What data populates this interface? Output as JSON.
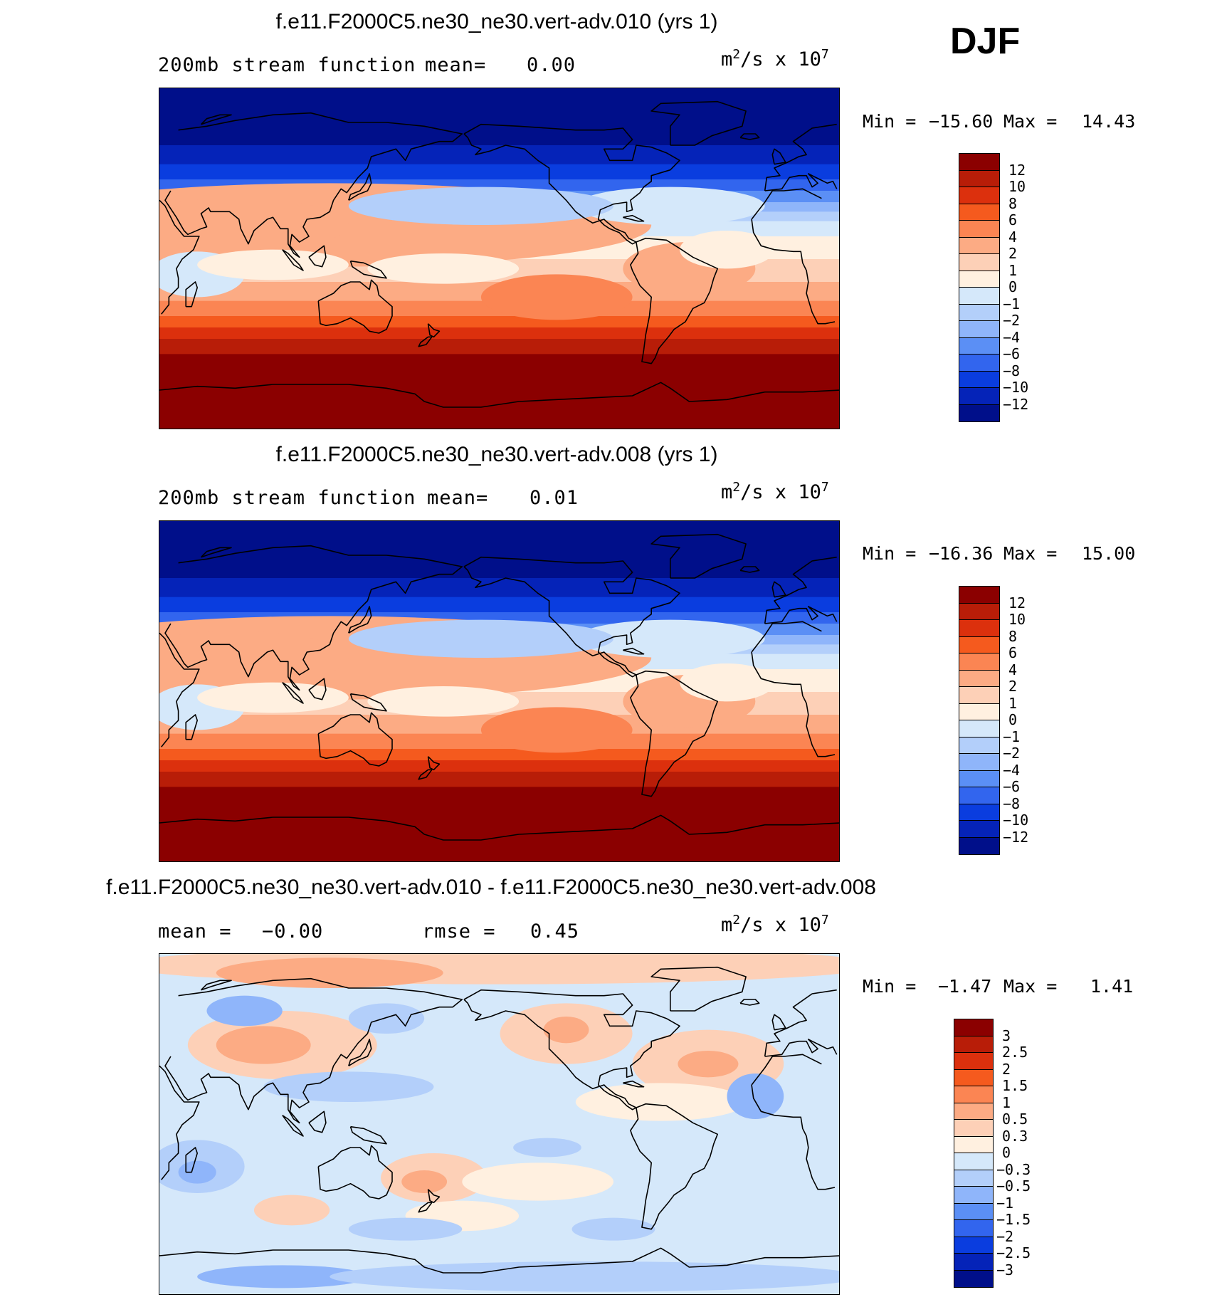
{
  "season": "DJF",
  "panels": [
    {
      "title": "f.e11.F2000C5.ne30_ne30.vert-adv.010 (yrs 1)",
      "subtitle_left": "200mb stream function",
      "stat_label": "mean=",
      "stat_value": "0.00",
      "units": "m²/s x 10⁷",
      "min_label": "Min =",
      "min_value": "−15.60",
      "max_label": "Max =",
      "max_value": "14.43"
    },
    {
      "title": "f.e11.F2000C5.ne30_ne30.vert-adv.008 (yrs 1)",
      "subtitle_left": "200mb stream function",
      "stat_label": "mean=",
      "stat_value": "0.01",
      "units": "m²/s x 10⁷",
      "min_label": "Min =",
      "min_value": "−16.36",
      "max_label": "Max =",
      "max_value": "15.00"
    },
    {
      "title": "f.e11.F2000C5.ne30_ne30.vert-adv.010 - f.e11.F2000C5.ne30_ne30.vert-adv.008",
      "mean_label": "mean =",
      "mean_value": "−0.00",
      "rmse_label": "rmse =",
      "rmse_value": "0.45",
      "units": "m²/s x 10⁷",
      "min_label": "Min =",
      "min_value": "−1.47",
      "max_label": "Max =",
      "max_value": "1.41"
    }
  ],
  "colorbars": {
    "field": {
      "labels": [
        "12",
        "10",
        "8",
        "6",
        "4",
        "2",
        "1",
        "0",
        "−1",
        "−2",
        "−4",
        "−6",
        "−8",
        "−10",
        "−12"
      ],
      "colors": [
        "#8b0000",
        "#b81d08",
        "#dc300d",
        "#f55a1e",
        "#fb8553",
        "#fcab84",
        "#fdd0b7",
        "#fff0e0",
        "#d5e8fa",
        "#b3cffa",
        "#8fb5fa",
        "#5b8ff5",
        "#3265ee",
        "#0a3ddf",
        "#0523b8",
        "#000f8a"
      ]
    },
    "diff": {
      "labels": [
        "3",
        "2.5",
        "2",
        "1.5",
        "1",
        "0.5",
        "0.3",
        "0",
        "−0.3",
        "−0.5",
        "−1",
        "−1.5",
        "−2",
        "−2.5",
        "−3"
      ],
      "colors": [
        "#8b0000",
        "#b81d08",
        "#dc300d",
        "#f55a1e",
        "#fb8553",
        "#fcab84",
        "#fdd0b7",
        "#fff0e0",
        "#d5e8fa",
        "#b3cffa",
        "#8fb5fa",
        "#5b8ff5",
        "#3265ee",
        "#0a3ddf",
        "#0523b8",
        "#000f8a"
      ]
    }
  },
  "chart_data": [
    {
      "type": "heatmap",
      "title": "f.e11.F2000C5.ne30_ne30.vert-adv.010 (yrs 1)",
      "variable": "200mb stream function",
      "units": "m²/s x 10⁷",
      "mean": 0.0,
      "min": -15.6,
      "max": 14.43,
      "contour_levels": [
        -12,
        -10,
        -8,
        -6,
        -4,
        -2,
        -1,
        0,
        1,
        2,
        4,
        6,
        8,
        10,
        12
      ],
      "zonal_bands_north_to_south": [
        {
          "lat_from": 90,
          "lat_to": 60,
          "value": -13
        },
        {
          "lat_from": 60,
          "lat_to": 50,
          "value": -11
        },
        {
          "lat_from": 50,
          "lat_to": 42,
          "value": -9
        },
        {
          "lat_from": 42,
          "lat_to": 36,
          "value": -7
        },
        {
          "lat_from": 36,
          "lat_to": 30,
          "value": -5
        },
        {
          "lat_from": 30,
          "lat_to": 25,
          "value": -3
        },
        {
          "lat_from": 25,
          "lat_to": 20,
          "value": -1.5
        },
        {
          "lat_from": 20,
          "lat_to": 12,
          "value": -0.5
        },
        {
          "lat_from": 12,
          "lat_to": 0,
          "value": 0.5
        },
        {
          "lat_from": 0,
          "lat_to": -12,
          "value": 1.5
        },
        {
          "lat_from": -12,
          "lat_to": -22,
          "value": 3
        },
        {
          "lat_from": -22,
          "lat_to": -30,
          "value": 5
        },
        {
          "lat_from": -30,
          "lat_to": -36,
          "value": 7
        },
        {
          "lat_from": -36,
          "lat_to": -42,
          "value": 9
        },
        {
          "lat_from": -42,
          "lat_to": -50,
          "value": 11
        },
        {
          "lat_from": -50,
          "lat_to": -90,
          "value": 13
        }
      ]
    },
    {
      "type": "heatmap",
      "title": "f.e11.F2000C5.ne30_ne30.vert-adv.008 (yrs 1)",
      "variable": "200mb stream function",
      "units": "m²/s x 10⁷",
      "mean": 0.01,
      "min": -16.36,
      "max": 15.0,
      "contour_levels": [
        -12,
        -10,
        -8,
        -6,
        -4,
        -2,
        -1,
        0,
        1,
        2,
        4,
        6,
        8,
        10,
        12
      ],
      "zonal_bands_north_to_south": [
        {
          "lat_from": 90,
          "lat_to": 60,
          "value": -13
        },
        {
          "lat_from": 60,
          "lat_to": 50,
          "value": -11
        },
        {
          "lat_from": 50,
          "lat_to": 42,
          "value": -9
        },
        {
          "lat_from": 42,
          "lat_to": 36,
          "value": -7
        },
        {
          "lat_from": 36,
          "lat_to": 30,
          "value": -5
        },
        {
          "lat_from": 30,
          "lat_to": 25,
          "value": -3
        },
        {
          "lat_from": 25,
          "lat_to": 20,
          "value": -1.5
        },
        {
          "lat_from": 20,
          "lat_to": 12,
          "value": -0.5
        },
        {
          "lat_from": 12,
          "lat_to": 0,
          "value": 0.5
        },
        {
          "lat_from": 0,
          "lat_to": -12,
          "value": 1.5
        },
        {
          "lat_from": -12,
          "lat_to": -22,
          "value": 3
        },
        {
          "lat_from": -22,
          "lat_to": -30,
          "value": 5
        },
        {
          "lat_from": -30,
          "lat_to": -36,
          "value": 7
        },
        {
          "lat_from": -36,
          "lat_to": -42,
          "value": 9
        },
        {
          "lat_from": -42,
          "lat_to": -50,
          "value": 11
        },
        {
          "lat_from": -50,
          "lat_to": -90,
          "value": 13
        }
      ]
    },
    {
      "type": "heatmap",
      "title": "f.e11.F2000C5.ne30_ne30.vert-adv.010 - f.e11.F2000C5.ne30_ne30.vert-adv.008",
      "units": "m²/s x 10⁷",
      "mean": -0.0,
      "rmse": 0.45,
      "min": -1.47,
      "max": 1.41,
      "contour_levels": [
        -3,
        -2.5,
        -2,
        -1.5,
        -1,
        -0.5,
        -0.3,
        0,
        0.3,
        0.5,
        1,
        1.5,
        2,
        2.5,
        3
      ]
    }
  ]
}
